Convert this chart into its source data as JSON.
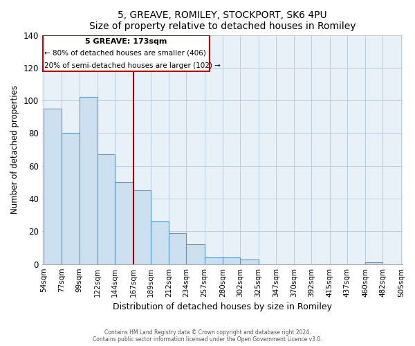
{
  "title": "5, GREAVE, ROMILEY, STOCKPORT, SK6 4PU",
  "subtitle": "Size of property relative to detached houses in Romiley",
  "xlabel": "Distribution of detached houses by size in Romiley",
  "ylabel": "Number of detached properties",
  "bar_color": "#cce0f0",
  "bar_edge_color": "#5599cc",
  "plot_bg_color": "#e8f0f8",
  "bins": [
    54,
    77,
    99,
    122,
    144,
    167,
    189,
    212,
    234,
    257,
    280,
    302,
    325,
    347,
    370,
    392,
    415,
    437,
    460,
    482,
    505
  ],
  "counts": [
    95,
    80,
    102,
    67,
    50,
    45,
    26,
    19,
    12,
    4,
    4,
    3,
    0,
    0,
    0,
    0,
    0,
    0,
    1,
    0
  ],
  "tick_labels": [
    "54sqm",
    "77sqm",
    "99sqm",
    "122sqm",
    "144sqm",
    "167sqm",
    "189sqm",
    "212sqm",
    "234sqm",
    "257sqm",
    "280sqm",
    "302sqm",
    "325sqm",
    "347sqm",
    "370sqm",
    "392sqm",
    "415sqm",
    "437sqm",
    "460sqm",
    "482sqm",
    "505sqm"
  ],
  "property_label": "5 GREAVE: 173sqm",
  "pct_smaller": 80,
  "n_smaller": 406,
  "pct_larger_semi": 20,
  "n_larger_semi": 102,
  "vline_color": "#aa0000",
  "annotation_box_edge": "#cc0000",
  "annotation_box_color": "#ffffff",
  "ylim": [
    0,
    140
  ],
  "yticks": [
    0,
    20,
    40,
    60,
    80,
    100,
    120,
    140
  ],
  "grid_color": "#bbccdd",
  "footer1": "Contains HM Land Registry data © Crown copyright and database right 2024.",
  "footer2": "Contains public sector information licensed under the Open Government Licence v3.0."
}
